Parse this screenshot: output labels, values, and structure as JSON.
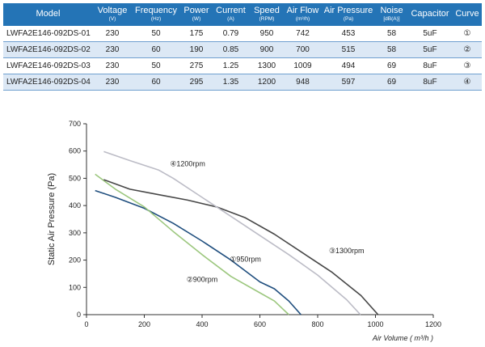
{
  "table": {
    "columns": [
      {
        "name": "Model",
        "unit": ""
      },
      {
        "name": "Voltage",
        "unit": "(V)"
      },
      {
        "name": "Frequency",
        "unit": "(Hz)"
      },
      {
        "name": "Power",
        "unit": "(W)"
      },
      {
        "name": "Current",
        "unit": "(A)"
      },
      {
        "name": "Speed",
        "unit": "(RPM)"
      },
      {
        "name": "Air Flow",
        "unit": "(m³/h)"
      },
      {
        "name": "Air Pressure",
        "unit": "(Pa)"
      },
      {
        "name": "Noise",
        "unit": "[dB(A)]"
      },
      {
        "name": "Capacitor",
        "unit": ""
      },
      {
        "name": "Curve",
        "unit": ""
      }
    ],
    "rows": [
      [
        "LWFA2E146-092DS-01",
        "230",
        "50",
        "175",
        "0.79",
        "950",
        "742",
        "453",
        "58",
        "5uF",
        "①"
      ],
      [
        "LWFA2E146-092DS-02",
        "230",
        "60",
        "190",
        "0.85",
        "900",
        "700",
        "515",
        "58",
        "5uF",
        "②"
      ],
      [
        "LWFA2E146-092DS-03",
        "230",
        "50",
        "275",
        "1.25",
        "1300",
        "1009",
        "494",
        "69",
        "8uF",
        "③"
      ],
      [
        "LWFA2E146-092DS-04",
        "230",
        "60",
        "295",
        "1.35",
        "1200",
        "948",
        "597",
        "69",
        "8uF",
        "④"
      ]
    ]
  },
  "chart_data": {
    "type": "line",
    "xlabel": "Air Volume ( m³/h )",
    "ylabel": "Static Air Pressure  (Pa)",
    "xlim": [
      0,
      1200
    ],
    "ylim": [
      0,
      700
    ],
    "xticks": [
      0,
      200,
      400,
      600,
      800,
      1000,
      1200
    ],
    "yticks": [
      0,
      100,
      200,
      300,
      400,
      500,
      600,
      700
    ],
    "grid": false,
    "series": [
      {
        "name": "①950rpm",
        "color": "#1f4e7e",
        "x": [
          30,
          100,
          200,
          300,
          400,
          500,
          600,
          650,
          700,
          742
        ],
        "y": [
          455,
          430,
          390,
          335,
          270,
          200,
          120,
          95,
          50,
          0
        ]
      },
      {
        "name": "②900rpm",
        "color": "#9cc77e",
        "x": [
          30,
          100,
          200,
          300,
          400,
          500,
          600,
          650,
          700
        ],
        "y": [
          515,
          460,
          395,
          305,
          220,
          140,
          80,
          50,
          0
        ]
      },
      {
        "name": "③1300rpm",
        "color": "#474747",
        "x": [
          60,
          150,
          250,
          350,
          450,
          550,
          650,
          750,
          850,
          950,
          1009
        ],
        "y": [
          495,
          460,
          440,
          420,
          395,
          355,
          295,
          225,
          155,
          70,
          0
        ]
      },
      {
        "name": "④1200rpm",
        "color": "#bcbcc6",
        "x": [
          60,
          150,
          250,
          300,
          400,
          500,
          600,
          700,
          800,
          900,
          948
        ],
        "y": [
          598,
          565,
          530,
          500,
          430,
          360,
          290,
          220,
          145,
          55,
          0
        ]
      }
    ],
    "series_labels": [
      {
        "series": 0,
        "x": 550,
        "y": 195
      },
      {
        "series": 1,
        "x": 400,
        "y": 120
      },
      {
        "series": 2,
        "x": 900,
        "y": 225
      },
      {
        "series": 3,
        "x": 350,
        "y": 545
      }
    ]
  }
}
